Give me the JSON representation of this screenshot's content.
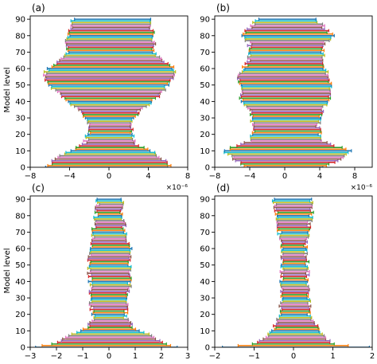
{
  "figure": {
    "ylabel_left": "Model level"
  },
  "palette": [
    "#1f77b4",
    "#ff7f0e",
    "#2ca02c",
    "#d62728",
    "#9467bd",
    "#8c564b",
    "#e377c2",
    "#7f7f7f",
    "#bcbd22",
    "#17becf"
  ],
  "chart_data": [
    {
      "type": "errorbar-range",
      "panel_label": "(a)",
      "xlim": [
        -8,
        8
      ],
      "xticks": [
        -8,
        -4,
        0,
        4,
        8
      ],
      "xtick_labels": [
        "−8",
        "−4",
        "0",
        "4",
        "8"
      ],
      "x_multiplier": "×10⁻⁶",
      "ylim": [
        0,
        92
      ],
      "yticks": [
        0,
        10,
        20,
        30,
        40,
        50,
        60,
        70,
        80,
        90
      ],
      "levels": [
        0,
        90
      ],
      "profile": [
        [
          0,
          -6.2,
          6.2
        ],
        [
          5,
          -5.5,
          5.5
        ],
        [
          10,
          -3.8,
          4.2
        ],
        [
          14,
          -2.5,
          2.5
        ],
        [
          20,
          -2.1,
          2.3
        ],
        [
          28,
          -2.0,
          2.2
        ],
        [
          35,
          -3.0,
          3.2
        ],
        [
          42,
          -4.5,
          4.8
        ],
        [
          50,
          -6.2,
          6.0
        ],
        [
          55,
          -6.6,
          6.5
        ],
        [
          60,
          -6.2,
          6.6
        ],
        [
          65,
          -5.0,
          5.5
        ],
        [
          70,
          -4.2,
          4.5
        ],
        [
          80,
          -4.2,
          4.5
        ],
        [
          90,
          -3.6,
          4.0
        ]
      ]
    },
    {
      "type": "errorbar-range",
      "panel_label": "(b)",
      "xlim": [
        -8,
        10
      ],
      "xticks": [
        -8,
        -4,
        0,
        4,
        8
      ],
      "xtick_labels": [
        "−8",
        "−4",
        "0",
        "4",
        "8"
      ],
      "x_multiplier": "×10⁻⁶",
      "ylim": [
        0,
        92
      ],
      "yticks": [
        0,
        10,
        20,
        30,
        40,
        50,
        60,
        70,
        80,
        90
      ],
      "levels": [
        0,
        90
      ],
      "profile": [
        [
          0,
          -4.5,
          4.5
        ],
        [
          6,
          -6.0,
          6.5
        ],
        [
          10,
          -7.0,
          7.5
        ],
        [
          16,
          -4.0,
          4.2
        ],
        [
          25,
          -3.5,
          3.8
        ],
        [
          35,
          -4.0,
          4.2
        ],
        [
          42,
          -5.0,
          5.0
        ],
        [
          50,
          -5.0,
          5.2
        ],
        [
          55,
          -5.5,
          5.0
        ],
        [
          65,
          -4.0,
          4.2
        ],
        [
          75,
          -4.0,
          4.5
        ],
        [
          80,
          -5.0,
          5.5
        ],
        [
          85,
          -4.0,
          4.5
        ],
        [
          90,
          -3.0,
          3.5
        ]
      ]
    },
    {
      "type": "errorbar-range",
      "panel_label": "(c)",
      "xlim": [
        -3,
        3
      ],
      "xticks": [
        -3,
        -2,
        -1,
        0,
        1,
        2,
        3
      ],
      "xtick_labels": [
        "−3",
        "−2",
        "−1",
        "0",
        "1",
        "2",
        "3"
      ],
      "x_multiplier": "",
      "ylim": [
        0,
        92
      ],
      "yticks": [
        0,
        10,
        20,
        30,
        40,
        50,
        60,
        70,
        80,
        90
      ],
      "levels": [
        0,
        90
      ],
      "profile": [
        [
          0,
          -2.8,
          2.6
        ],
        [
          3,
          -2.0,
          2.0
        ],
        [
          7,
          -1.5,
          1.6
        ],
        [
          12,
          -0.8,
          0.9
        ],
        [
          18,
          -0.6,
          0.6
        ],
        [
          28,
          -0.7,
          0.7
        ],
        [
          40,
          -0.7,
          0.8
        ],
        [
          50,
          -0.8,
          0.8
        ],
        [
          60,
          -0.7,
          0.8
        ],
        [
          70,
          -0.6,
          0.6
        ],
        [
          80,
          -0.5,
          0.5
        ],
        [
          90,
          -0.4,
          0.5
        ]
      ]
    },
    {
      "type": "errorbar-range",
      "panel_label": "(d)",
      "xlim": [
        -2,
        2
      ],
      "xticks": [
        -2,
        -1,
        0,
        1,
        2
      ],
      "xtick_labels": [
        "−2",
        "−1",
        "0",
        "1",
        "2"
      ],
      "x_multiplier": "",
      "ylim": [
        0,
        92
      ],
      "yticks": [
        0,
        10,
        20,
        30,
        40,
        50,
        60,
        70,
        80,
        90
      ],
      "levels": [
        0,
        90
      ],
      "profile": [
        [
          0,
          -1.8,
          1.9
        ],
        [
          2,
          -1.0,
          1.0
        ],
        [
          6,
          -0.7,
          0.8
        ],
        [
          12,
          -0.5,
          0.6
        ],
        [
          20,
          -0.35,
          0.4
        ],
        [
          35,
          -0.3,
          0.35
        ],
        [
          50,
          -0.3,
          0.35
        ],
        [
          60,
          -0.3,
          0.3
        ],
        [
          70,
          -0.35,
          0.35
        ],
        [
          80,
          -0.4,
          0.45
        ],
        [
          90,
          -0.5,
          0.45
        ]
      ]
    }
  ]
}
